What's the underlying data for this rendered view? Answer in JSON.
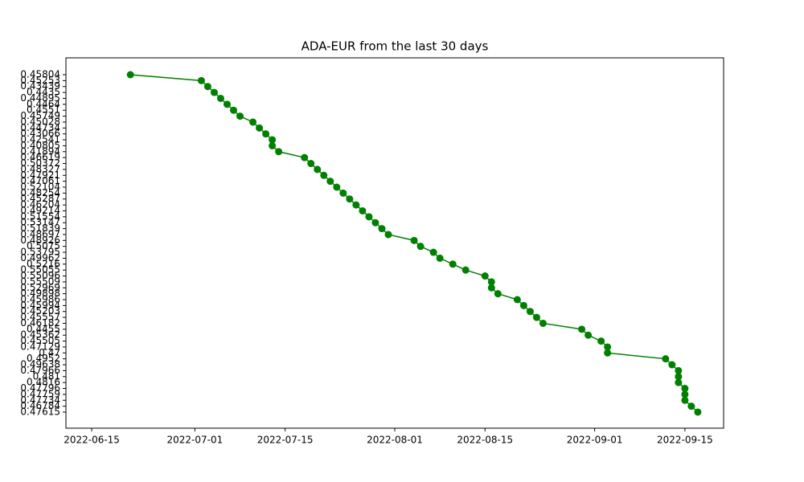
{
  "chart_data": {
    "type": "line",
    "title": "ADA-EUR from the last 30 days",
    "y_scale": "categorical",
    "x": [
      "2022-06-21",
      "2022-07-02",
      "2022-07-03",
      "2022-07-04",
      "2022-07-05",
      "2022-07-06",
      "2022-07-07",
      "2022-07-08",
      "2022-07-10",
      "2022-07-11",
      "2022-07-12",
      "2022-07-13",
      "2022-07-13",
      "2022-07-14",
      "2022-07-18",
      "2022-07-19",
      "2022-07-20",
      "2022-07-21",
      "2022-07-22",
      "2022-07-23",
      "2022-07-24",
      "2022-07-25",
      "2022-07-26",
      "2022-07-27",
      "2022-07-28",
      "2022-07-29",
      "2022-07-30",
      "2022-07-31",
      "2022-08-04",
      "2022-08-05",
      "2022-08-07",
      "2022-08-08",
      "2022-08-10",
      "2022-08-12",
      "2022-08-15",
      "2022-08-16",
      "2022-08-16",
      "2022-08-17",
      "2022-08-20",
      "2022-08-21",
      "2022-08-22",
      "2022-08-23",
      "2022-08-24",
      "2022-08-30",
      "2022-08-31",
      "2022-09-02",
      "2022-09-03",
      "2022-09-03",
      "2022-09-12",
      "2022-09-13",
      "2022-09-14",
      "2022-09-14",
      "2022-09-14",
      "2022-09-15",
      "2022-09-15",
      "2022-09-15",
      "2022-09-16",
      "2022-09-17"
    ],
    "series": [
      {
        "color": "#008000",
        "values": [
          0.45804,
          0.45253,
          0.43439,
          0.4435,
          0.44895,
          0.4464,
          0.4551,
          0.45749,
          0.45028,
          0.44734,
          0.43066,
          0.42541,
          0.40805,
          0.41894,
          0.46619,
          0.50372,
          0.48327,
          0.47921,
          0.47061,
          0.52104,
          0.48254,
          0.45287,
          0.46204,
          0.49214,
          0.51554,
          0.53147,
          0.51839,
          0.48697,
          0.48926,
          0.5075,
          0.53795,
          0.49962,
          0.5216,
          0.55055,
          0.55096,
          0.55509,
          0.52969,
          0.49898,
          0.45986,
          0.45994,
          0.45203,
          0.45557,
          0.46182,
          0.4455,
          0.45362,
          0.45505,
          0.47129,
          0.47,
          0.4952,
          0.49638,
          0.47966,
          0.481,
          0.4816,
          0.47796,
          0.47759,
          0.47734,
          0.46784,
          0.47615
        ]
      }
    ],
    "xlim": [
      "2022-06-11",
      "2022-09-21"
    ],
    "xticks": [
      "2022-06-15",
      "2022-07-01",
      "2022-07-15",
      "2022-08-01",
      "2022-08-15",
      "2022-09-01",
      "2022-09-15"
    ]
  }
}
